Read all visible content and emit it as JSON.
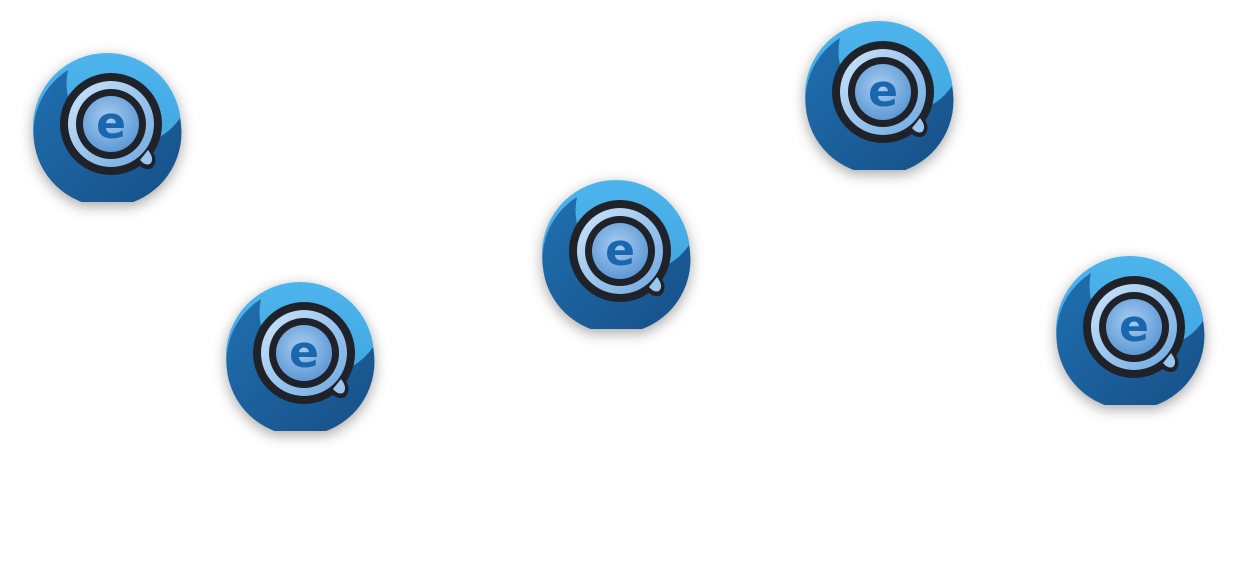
{
  "icons": [
    {
      "id": "badge-1",
      "name": "e-circle-badge-icon"
    },
    {
      "id": "badge-2",
      "name": "e-circle-badge-icon"
    },
    {
      "id": "badge-3",
      "name": "e-circle-badge-icon"
    },
    {
      "id": "badge-4",
      "name": "e-circle-badge-icon"
    },
    {
      "id": "badge-5",
      "name": "e-circle-badge-icon"
    }
  ],
  "colors": {
    "background": "#ffffff",
    "badge_light_blue": "#44ace6",
    "badge_dark_blue": "#1a5d97",
    "ring_dark": "#1f2329",
    "ring_light": "#9fc8ee",
    "letter_blue": "#1b67ae"
  }
}
